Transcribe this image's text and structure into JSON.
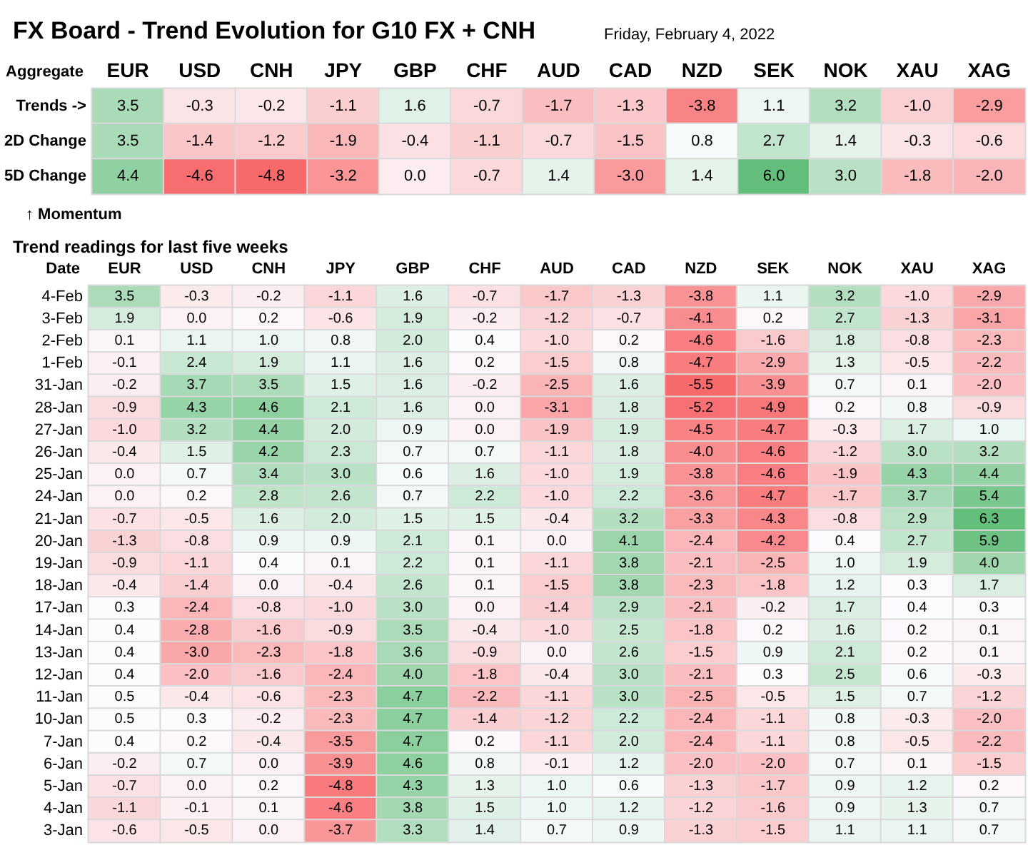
{
  "chart_data": [
    {
      "type": "heatmap",
      "title": "FX Board - Trend Evolution for G10 FX + CNH",
      "subtitle": "Friday, February 4, 2022",
      "ylabel": "Aggregate",
      "annotations": [
        "↑ Momentum"
      ],
      "categories": [
        "EUR",
        "USD",
        "CNH",
        "JPY",
        "GBP",
        "CHF",
        "AUD",
        "CAD",
        "NZD",
        "SEK",
        "NOK",
        "XAU",
        "XAG"
      ],
      "y_categories": [
        "Trends ->",
        "2D Change",
        "5D Change"
      ],
      "cell_labels": [
        [
          "3.5",
          "-0.3",
          "-0.2",
          "-1.1",
          "1.6",
          "-0.7",
          "-1.7",
          "-1.3",
          "-3.8",
          "1.1",
          "3.2",
          "-1.0",
          "-2.9"
        ],
        [
          "3.5",
          "-1.4",
          "-1.2",
          "-1.9",
          "-0.4",
          "-1.1",
          "-0.7",
          "-1.5",
          "0.8",
          "2.7",
          "1.4",
          "-0.3",
          "-0.6"
        ],
        [
          "4.4",
          "-4.6",
          "-4.8",
          "-3.2",
          "0.0",
          "-0.7",
          "1.4",
          "-3.0",
          "1.4",
          "6.0",
          "3.0",
          "-1.8",
          "-2.0"
        ]
      ],
      "colors": [
        "#f8696b",
        "#fcfcff",
        "#63be7b"
      ],
      "data_labels": true,
      "cells": [
        [
          3.5,
          -0.3,
          -0.2,
          -1.1,
          1.6,
          -0.7,
          -1.7,
          -1.3,
          -3.8,
          1.1,
          3.2,
          -1.0,
          -2.9
        ],
        [
          3.5,
          -1.4,
          -1.2,
          -1.9,
          -0.4,
          -1.1,
          -0.7,
          -1.5,
          0.8,
          2.7,
          1.4,
          -0.3,
          -0.6
        ],
        [
          4.4,
          -4.6,
          -4.8,
          -3.2,
          0.0,
          -0.7,
          1.4,
          -3.0,
          1.4,
          6.0,
          3.0,
          -1.8,
          -2.0
        ]
      ]
    },
    {
      "type": "heatmap",
      "title": "Trend readings for last five weeks",
      "ylabel": "Date",
      "categories": [
        "EUR",
        "USD",
        "CNH",
        "JPY",
        "GBP",
        "CHF",
        "AUD",
        "CAD",
        "NZD",
        "SEK",
        "NOK",
        "XAU",
        "XAG"
      ],
      "y_categories": [
        "4-Feb",
        "3-Feb",
        "2-Feb",
        "1-Feb",
        "31-Jan",
        "28-Jan",
        "27-Jan",
        "26-Jan",
        "25-Jan",
        "24-Jan",
        "21-Jan",
        "20-Jan",
        "19-Jan",
        "18-Jan",
        "17-Jan",
        "14-Jan",
        "13-Jan",
        "12-Jan",
        "11-Jan",
        "10-Jan",
        "7-Jan",
        "6-Jan",
        "5-Jan",
        "4-Jan",
        "3-Jan"
      ],
      "cell_labels": [
        [
          "3.5",
          "-0.3",
          "-0.2",
          "-1.1",
          "1.6",
          "-0.7",
          "-1.7",
          "-1.3",
          "-3.8",
          "1.1",
          "3.2",
          "-1.0",
          "-2.9"
        ],
        [
          "1.9",
          "0.0",
          "0.2",
          "-0.6",
          "1.9",
          "-0.2",
          "-1.2",
          "-0.7",
          "-4.1",
          "0.2",
          "2.7",
          "-1.3",
          "-3.1"
        ],
        [
          "0.1",
          "1.1",
          "1.0",
          "0.8",
          "2.0",
          "0.4",
          "-1.0",
          "0.2",
          "-4.6",
          "-1.6",
          "1.8",
          "-0.8",
          "-2.3"
        ],
        [
          "-0.1",
          "2.4",
          "1.9",
          "1.1",
          "1.6",
          "0.2",
          "-1.5",
          "0.8",
          "-4.7",
          "-2.9",
          "1.3",
          "-0.5",
          "-2.2"
        ],
        [
          "-0.2",
          "3.7",
          "3.5",
          "1.5",
          "1.6",
          "-0.2",
          "-2.5",
          "1.6",
          "-5.5",
          "-3.9",
          "0.7",
          "0.1",
          "-2.0"
        ],
        [
          "-0.9",
          "4.3",
          "4.6",
          "2.1",
          "1.6",
          "0.0",
          "-3.1",
          "1.8",
          "-5.2",
          "-4.9",
          "0.2",
          "0.8",
          "-0.9"
        ],
        [
          "-1.0",
          "3.2",
          "4.4",
          "2.0",
          "0.9",
          "0.0",
          "-1.9",
          "1.9",
          "-4.5",
          "-4.7",
          "-0.3",
          "1.7",
          "1.0"
        ],
        [
          "-0.4",
          "1.5",
          "4.2",
          "2.3",
          "0.7",
          "0.7",
          "-1.1",
          "1.8",
          "-4.0",
          "-4.6",
          "-1.2",
          "3.0",
          "3.2"
        ],
        [
          "0.0",
          "0.7",
          "3.4",
          "3.0",
          "0.6",
          "1.6",
          "-1.0",
          "1.9",
          "-3.8",
          "-4.6",
          "-1.9",
          "4.3",
          "4.4"
        ],
        [
          "0.0",
          "0.2",
          "2.8",
          "2.6",
          "0.7",
          "2.2",
          "-1.0",
          "2.2",
          "-3.6",
          "-4.7",
          "-1.7",
          "3.7",
          "5.4"
        ],
        [
          "-0.7",
          "-0.5",
          "1.6",
          "2.0",
          "1.5",
          "1.5",
          "-0.4",
          "3.2",
          "-3.3",
          "-4.3",
          "-0.8",
          "2.9",
          "6.3"
        ],
        [
          "-1.3",
          "-0.8",
          "0.9",
          "0.9",
          "2.1",
          "0.1",
          "0.0",
          "4.1",
          "-2.4",
          "-4.2",
          "0.4",
          "2.7",
          "5.9"
        ],
        [
          "-0.9",
          "-1.1",
          "0.4",
          "0.1",
          "2.2",
          "0.1",
          "-1.1",
          "3.8",
          "-2.1",
          "-2.5",
          "1.0",
          "1.9",
          "4.0"
        ],
        [
          "-0.4",
          "-1.4",
          "0.0",
          "-0.4",
          "2.6",
          "0.1",
          "-1.5",
          "3.8",
          "-2.3",
          "-1.8",
          "1.2",
          "0.3",
          "1.7"
        ],
        [
          "0.3",
          "-2.4",
          "-0.8",
          "-1.0",
          "3.0",
          "0.0",
          "-1.4",
          "2.9",
          "-2.1",
          "-0.2",
          "1.7",
          "0.4",
          "0.3"
        ],
        [
          "0.4",
          "-2.8",
          "-1.6",
          "-0.9",
          "3.5",
          "-0.4",
          "-1.0",
          "2.5",
          "-1.8",
          "0.2",
          "1.6",
          "0.2",
          "0.1"
        ],
        [
          "0.4",
          "-3.0",
          "-2.3",
          "-1.8",
          "3.6",
          "-0.9",
          "0.0",
          "2.6",
          "-1.5",
          "0.9",
          "2.1",
          "0.2",
          "0.1"
        ],
        [
          "0.4",
          "-2.0",
          "-1.6",
          "-2.4",
          "4.0",
          "-1.8",
          "-0.4",
          "3.0",
          "-2.1",
          "0.3",
          "2.5",
          "0.6",
          "-0.3"
        ],
        [
          "0.5",
          "-0.4",
          "-0.6",
          "-2.3",
          "4.7",
          "-2.2",
          "-1.1",
          "3.0",
          "-2.5",
          "-0.5",
          "1.5",
          "0.7",
          "-1.2"
        ],
        [
          "0.5",
          "0.3",
          "-0.2",
          "-2.3",
          "4.7",
          "-1.4",
          "-1.2",
          "2.2",
          "-2.4",
          "-1.1",
          "0.8",
          "-0.3",
          "-2.0"
        ],
        [
          "0.4",
          "0.2",
          "-0.4",
          "-3.5",
          "4.7",
          "0.2",
          "-1.1",
          "2.0",
          "-2.4",
          "-1.1",
          "0.8",
          "-0.5",
          "-2.2"
        ],
        [
          "-0.2",
          "0.7",
          "0.0",
          "-3.9",
          "4.6",
          "0.8",
          "-0.1",
          "1.2",
          "-2.0",
          "-2.0",
          "0.7",
          "0.1",
          "-1.5"
        ],
        [
          "-0.7",
          "0.0",
          "0.2",
          "-4.8",
          "4.3",
          "1.3",
          "1.0",
          "0.6",
          "-1.3",
          "-1.7",
          "0.9",
          "1.2",
          "0.2"
        ],
        [
          "-1.1",
          "-0.1",
          "0.1",
          "-4.6",
          "3.8",
          "1.5",
          "1.0",
          "1.2",
          "-1.2",
          "-1.6",
          "0.9",
          "1.3",
          "0.7"
        ],
        [
          "-0.6",
          "-0.5",
          "0.0",
          "-3.7",
          "3.3",
          "1.4",
          "0.7",
          "0.9",
          "-1.3",
          "-1.5",
          "1.1",
          "1.1",
          "0.7"
        ]
      ],
      "colors": [
        "#f8696b",
        "#fcfcff",
        "#63be7b"
      ],
      "data_labels": true,
      "cells": [
        [
          3.5,
          -0.3,
          -0.2,
          -1.1,
          1.6,
          -0.7,
          -1.7,
          -1.3,
          -3.8,
          1.1,
          3.2,
          -1.0,
          -2.9
        ],
        [
          1.9,
          0.0,
          0.2,
          -0.6,
          1.9,
          -0.2,
          -1.2,
          -0.7,
          -4.1,
          0.2,
          2.7,
          -1.3,
          -3.1
        ],
        [
          0.1,
          1.1,
          1.0,
          0.8,
          2.0,
          0.4,
          -1.0,
          0.2,
          -4.6,
          -1.6,
          1.8,
          -0.8,
          -2.3
        ],
        [
          -0.1,
          2.4,
          1.9,
          1.1,
          1.6,
          0.2,
          -1.5,
          0.8,
          -4.7,
          -2.9,
          1.3,
          -0.5,
          -2.2
        ],
        [
          -0.2,
          3.7,
          3.5,
          1.5,
          1.6,
          -0.2,
          -2.5,
          1.6,
          -5.5,
          -3.9,
          0.7,
          0.1,
          -2.0
        ],
        [
          -0.9,
          4.3,
          4.6,
          2.1,
          1.6,
          0.0,
          -3.1,
          1.8,
          -5.2,
          -4.9,
          0.2,
          0.8,
          -0.9
        ],
        [
          -1.0,
          3.2,
          4.4,
          2.0,
          0.9,
          0.0,
          -1.9,
          1.9,
          -4.5,
          -4.7,
          -0.3,
          1.7,
          1.0
        ],
        [
          -0.4,
          1.5,
          4.2,
          2.3,
          0.7,
          0.7,
          -1.1,
          1.8,
          -4.0,
          -4.6,
          -1.2,
          3.0,
          3.2
        ],
        [
          0.0,
          0.7,
          3.4,
          3.0,
          0.6,
          1.6,
          -1.0,
          1.9,
          -3.8,
          -4.6,
          -1.9,
          4.3,
          4.4
        ],
        [
          0.0,
          0.2,
          2.8,
          2.6,
          0.7,
          2.2,
          -1.0,
          2.2,
          -3.6,
          -4.7,
          -1.7,
          3.7,
          5.4
        ],
        [
          -0.7,
          -0.5,
          1.6,
          2.0,
          1.5,
          1.5,
          -0.4,
          3.2,
          -3.3,
          -4.3,
          -0.8,
          2.9,
          6.3
        ],
        [
          -1.3,
          -0.8,
          0.9,
          0.9,
          2.1,
          0.1,
          0.0,
          4.1,
          -2.4,
          -4.2,
          0.4,
          2.7,
          5.9
        ],
        [
          -0.9,
          -1.1,
          0.4,
          0.1,
          2.2,
          0.1,
          -1.1,
          3.8,
          -2.1,
          -2.5,
          1.0,
          1.9,
          4.0
        ],
        [
          -0.4,
          -1.4,
          0.0,
          -0.4,
          2.6,
          0.1,
          -1.5,
          3.8,
          -2.3,
          -1.8,
          1.2,
          0.3,
          1.7
        ],
        [
          0.3,
          -2.4,
          -0.8,
          -1.0,
          3.0,
          0.0,
          -1.4,
          2.9,
          -2.1,
          -0.2,
          1.7,
          0.4,
          0.3
        ],
        [
          0.4,
          -2.8,
          -1.6,
          -0.9,
          3.5,
          -0.4,
          -1.0,
          2.5,
          -1.8,
          0.2,
          1.6,
          0.2,
          0.1
        ],
        [
          0.4,
          -3.0,
          -2.3,
          -1.8,
          3.6,
          -0.9,
          0.0,
          2.6,
          -1.5,
          0.9,
          2.1,
          0.2,
          0.1
        ],
        [
          0.4,
          -2.0,
          -1.6,
          -2.4,
          4.0,
          -1.8,
          -0.4,
          3.0,
          -2.1,
          0.3,
          2.5,
          0.6,
          -0.3
        ],
        [
          0.5,
          -0.4,
          -0.6,
          -2.3,
          4.7,
          -2.2,
          -1.1,
          3.0,
          -2.5,
          -0.5,
          1.5,
          0.7,
          -1.2
        ],
        [
          0.5,
          0.3,
          -0.2,
          -2.3,
          4.7,
          -1.4,
          -1.2,
          2.2,
          -2.4,
          -1.1,
          0.8,
          -0.3,
          -2.0
        ],
        [
          0.4,
          0.2,
          -0.4,
          -3.5,
          4.7,
          0.2,
          -1.1,
          2.0,
          -2.4,
          -1.1,
          0.8,
          -0.5,
          -2.2
        ],
        [
          -0.2,
          0.7,
          0.0,
          -3.9,
          4.6,
          0.8,
          -0.1,
          1.2,
          -2.0,
          -2.0,
          0.7,
          0.1,
          -1.5
        ],
        [
          -0.7,
          0.0,
          0.2,
          -4.8,
          4.3,
          1.3,
          1.0,
          0.6,
          -1.3,
          -1.7,
          0.9,
          1.2,
          0.2
        ],
        [
          -1.1,
          -0.1,
          0.1,
          -4.6,
          3.8,
          1.5,
          1.0,
          1.2,
          -1.2,
          -1.6,
          0.9,
          1.3,
          0.7
        ],
        [
          -0.6,
          -0.5,
          0.0,
          -3.7,
          3.3,
          1.4,
          0.7,
          0.9,
          -1.3,
          -1.5,
          1.1,
          1.1,
          0.7
        ]
      ]
    }
  ]
}
